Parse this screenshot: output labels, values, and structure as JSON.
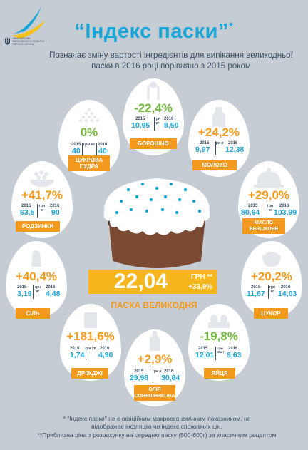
{
  "header": {
    "org_text": "Міністерство економічного розвитку і торгівлі України",
    "title": "“Індекс паски”",
    "title_mark": "*",
    "subtitle": "Позначає зміну вартості інгредієнтів для випікання великодньої паски в 2016 році порівняно з 2015 роком"
  },
  "year_a": "2015",
  "year_b": "2016",
  "ingredients": [
    {
      "id": "sugar",
      "label": "ЦУКРОВА ПУДРА",
      "change": "0%",
      "direction": "neutral",
      "unit": "грн кг",
      "v2015": "40",
      "v2016": "40"
    },
    {
      "id": "flour",
      "label": "БОРОШНО",
      "change": "-22,4%",
      "direction": "down",
      "unit": "грн кг",
      "v2015": "10,95",
      "v2016": "8,50"
    },
    {
      "id": "milk",
      "label": "МОЛОКО",
      "change": "+24,2%",
      "direction": "up",
      "unit": "грн л",
      "v2015": "9,97",
      "v2016": "12,38"
    },
    {
      "id": "raisins",
      "label": "РОДЗИНКИ",
      "change": "+41,7%",
      "direction": "up",
      "unit": "грн кг",
      "v2015": "63,5",
      "v2016": "90"
    },
    {
      "id": "butter",
      "label": "МАСЛО ВЕРШКОВЕ",
      "change": "+29,0%",
      "direction": "up",
      "unit": "грн кг",
      "v2015": "80,64",
      "v2016": "103,99"
    },
    {
      "id": "salt",
      "label": "СІЛЬ",
      "change": "+40,4%",
      "direction": "up",
      "unit": "грн кг",
      "v2015": "3,19",
      "v2016": "4,48"
    },
    {
      "id": "sugar2",
      "label": "ЦУКОР",
      "change": "+20,2%",
      "direction": "up",
      "unit": "грн кг",
      "v2015": "11,67",
      "v2016": "14,03"
    },
    {
      "id": "yeast",
      "label": "ДРІЖДЖІ",
      "change": "+181,6%",
      "direction": "up",
      "unit": "грн уп",
      "v2015": "1,74",
      "v2016": "4,90"
    },
    {
      "id": "oil",
      "label": "ОЛІЯ СОНЯШНИКОВА",
      "change": "+2,9%",
      "direction": "up",
      "unit": "грн л",
      "v2015": "29,98",
      "v2016": "30,84"
    },
    {
      "id": "eggs",
      "label": "ЯЙЦЯ",
      "change": "-19,8%",
      "direction": "down",
      "unit": "грн 10шт",
      "v2015": "12,01",
      "v2016": "9,63"
    }
  ],
  "cake": {
    "price": "22,04",
    "unit": "ГРН **",
    "change": "+33,9%",
    "name": "ПАСКА ВЕЛИКОДНЯ"
  },
  "footnotes": {
    "note1": "* “Індекс паски” не є офіційним макроекономічним показником, не відображає інфляцію чи індекс споживчих цін.",
    "note2": "**Приблизна ціна з розрахунку на середню паску (500-600г) за класичним рецептом"
  },
  "colors": {
    "orange": "#f39a1e",
    "blue": "#1aa5d8",
    "green": "#72b63e",
    "background": "#c6ccd3"
  }
}
